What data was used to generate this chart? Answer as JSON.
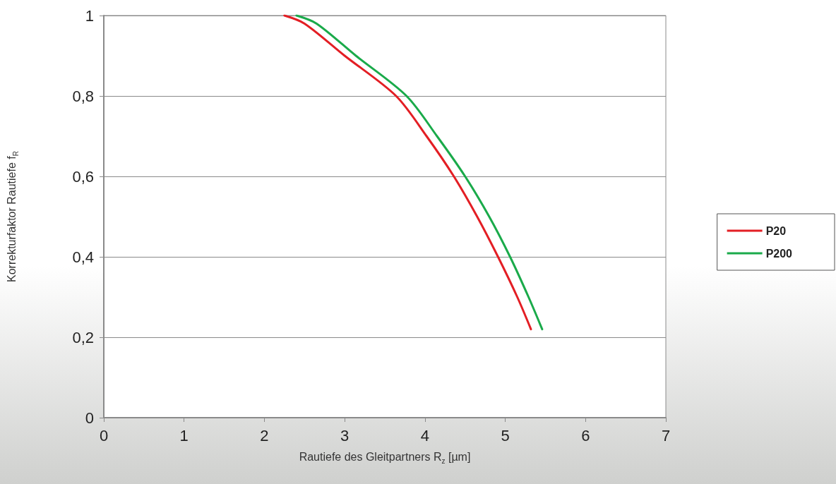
{
  "chart_data": {
    "type": "line",
    "xlabel": "Rautiefe des Gleitpartners R$_{z}$ [µm]",
    "ylabel": "Korrekturfaktor Rautiefe f$_{R}$",
    "series": [
      {
        "name": "P20",
        "color": "#e31e24",
        "x": [
          2.25,
          2.5,
          3.0,
          3.64,
          4.02,
          4.36,
          4.65,
          4.91,
          5.15,
          5.32
        ],
        "values": [
          1,
          0.98,
          0.9,
          0.8,
          0.7,
          0.6,
          0.5,
          0.4,
          0.3,
          0.22
        ]
      },
      {
        "name": "P200",
        "color": "#1aaa4a",
        "x": [
          2.4,
          2.65,
          3.14,
          3.77,
          4.15,
          4.5,
          4.8,
          5.06,
          5.29,
          5.46
        ],
        "values": [
          1,
          0.98,
          0.9,
          0.8,
          0.7,
          0.6,
          0.5,
          0.4,
          0.3,
          0.22
        ]
      }
    ],
    "xlim": [
      0,
      7
    ],
    "xticks": [
      0,
      1,
      2,
      3,
      4,
      5,
      6,
      7
    ],
    "ylim": [
      0,
      1
    ],
    "yticks": [
      0,
      {
        "value": 0.2,
        "label": "0,2"
      },
      {
        "value": 0.4,
        "label": "0,4"
      },
      {
        "value": 0.6,
        "label": "0,6"
      },
      {
        "value": 0.8,
        "label": "0,8"
      },
      1
    ],
    "grid": "y",
    "legend": "right",
    "marker": "none",
    "line_style": "solid"
  }
}
